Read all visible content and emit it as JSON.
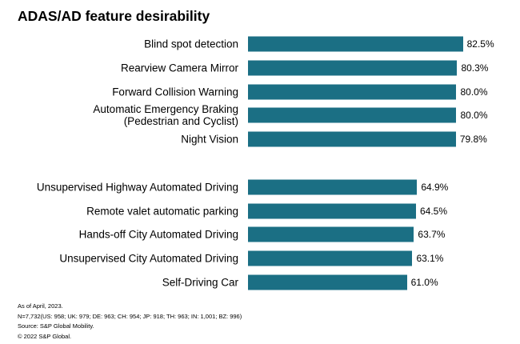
{
  "chart_data": {
    "type": "bar",
    "orientation": "horizontal",
    "title": "ADAS/AD feature desirability",
    "categories": [
      "Blind spot detection",
      "Rearview Camera Mirror",
      "Forward Collision Warning",
      "Automatic Emergency Braking\n(Pedestrian and Cyclist)",
      "Night Vision",
      null,
      "Unsupervised Highway Automated Driving",
      "Remote valet automatic parking",
      "Hands-off City Automated Driving",
      "Unsupervised City Automated Driving",
      "Self-Driving Car"
    ],
    "values": [
      82.5,
      80.3,
      80.0,
      80.0,
      79.8,
      null,
      64.9,
      64.5,
      63.7,
      63.1,
      61.0
    ],
    "value_labels": [
      "82.5%",
      "80.3%",
      "80.0%",
      "80.0%",
      "79.8%",
      null,
      "64.9%",
      "64.5%",
      "63.7%",
      "63.1%",
      "61.0%"
    ],
    "color": "#1b6f84",
    "xlim": [
      0,
      100
    ],
    "notes": [
      "As of April, 2023.",
      "N=7,732(US: 958; UK: 979; DE: 963; CH: 954; JP: 918; TH: 963; IN: 1,001; BZ: 996)",
      "Source: S&P Global Mobility.",
      "© 2022 S&P Global."
    ]
  }
}
